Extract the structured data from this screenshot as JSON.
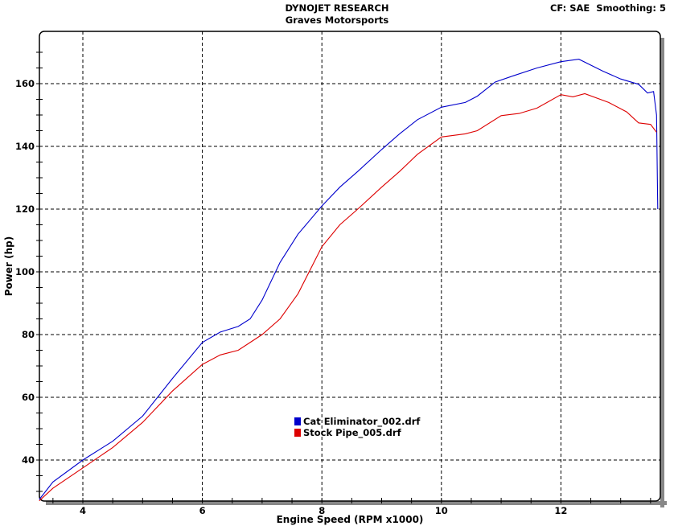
{
  "header": {
    "title": "DYNOJET RESEARCH",
    "subtitle": "Graves Motorsports",
    "info": "CF: SAE  Smoothing: 5"
  },
  "colors": {
    "series_1": "#0000cc",
    "series_2": "#dd0000",
    "grid": "#000000",
    "shadow": "#888888"
  },
  "chart_data": {
    "type": "line",
    "title": "DYNOJET RESEARCH",
    "subtitle": "Graves Motorsports",
    "annotation": "CF: SAE  Smoothing: 5",
    "xlabel": "Engine Speed (RPM x1000)",
    "ylabel": "Power (hp)",
    "xlim": [
      3.27,
      13.67
    ],
    "ylim": [
      26.6,
      175
    ],
    "xticks": [
      4,
      6,
      8,
      10,
      12
    ],
    "yticks": [
      40,
      60,
      80,
      100,
      120,
      140,
      160
    ],
    "x_minor_step": 0.5,
    "y_minor_step": 5,
    "grid": true,
    "legend_position": "inside-bottom-center",
    "series": [
      {
        "name": "Cat Eliminator_002.drf",
        "color": "#0000cc",
        "x": [
          3.27,
          3.5,
          4.0,
          4.5,
          5.0,
          5.5,
          6.0,
          6.3,
          6.6,
          6.8,
          7.0,
          7.3,
          7.6,
          8.0,
          8.3,
          8.6,
          9.0,
          9.3,
          9.6,
          10.0,
          10.4,
          10.6,
          10.9,
          11.2,
          11.6,
          12.0,
          12.3,
          12.7,
          13.0,
          13.3,
          13.45,
          13.55,
          13.6,
          13.62
        ],
        "values": [
          27.4,
          33,
          40,
          46,
          54,
          66,
          77.5,
          80.8,
          82.6,
          85,
          91,
          103,
          112,
          121,
          127,
          132,
          139,
          144,
          148.5,
          152.5,
          154,
          156,
          160.5,
          162.5,
          165,
          167,
          167.8,
          164,
          161.5,
          159.8,
          157,
          157.5,
          150,
          120
        ]
      },
      {
        "name": "Stock Pipe_005.drf",
        "color": "#dd0000",
        "x": [
          3.27,
          3.5,
          4.0,
          4.5,
          5.0,
          5.5,
          6.0,
          6.3,
          6.6,
          7.0,
          7.3,
          7.6,
          8.0,
          8.3,
          8.6,
          9.0,
          9.3,
          9.6,
          10.0,
          10.4,
          10.6,
          11.0,
          11.3,
          11.6,
          12.0,
          12.2,
          12.4,
          12.8,
          13.1,
          13.3,
          13.5,
          13.6
        ],
        "values": [
          27,
          31,
          37.5,
          44,
          52,
          62,
          70.5,
          73.5,
          75,
          80,
          85,
          93,
          108,
          115,
          120,
          127,
          132,
          137.5,
          143,
          144,
          145,
          149.8,
          150.5,
          152.2,
          156.5,
          155.8,
          156.8,
          154,
          151,
          147.5,
          147,
          144.5
        ]
      }
    ]
  }
}
